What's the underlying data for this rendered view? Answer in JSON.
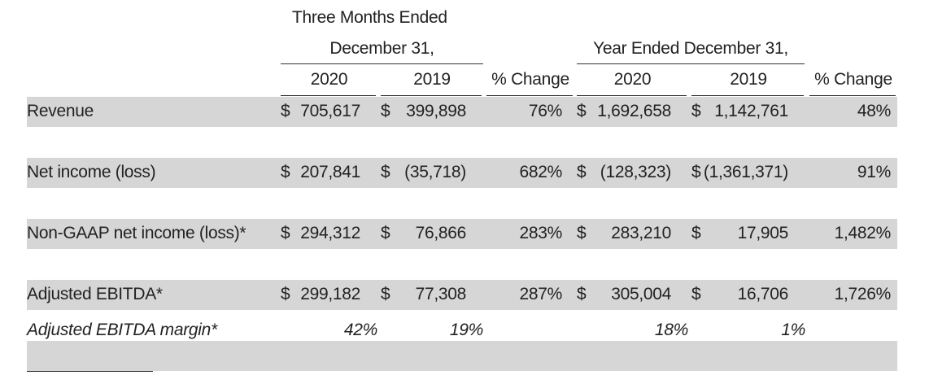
{
  "header": {
    "three_months_line1": "Three Months Ended",
    "three_months_line2": "December 31,",
    "year_ended": "Year Ended December 31,",
    "columns": [
      "2020",
      "2019",
      "% Change",
      "2020",
      "2019",
      "% Change"
    ]
  },
  "rows": [
    {
      "label": "Revenue",
      "cells": [
        {
          "currency": "$",
          "amount": "705,617"
        },
        {
          "currency": "$",
          "amount": "399,898"
        },
        "76%",
        {
          "currency": "$",
          "amount": "1,692,658"
        },
        {
          "currency": "$",
          "amount": "1,142,761"
        },
        "48%"
      ]
    },
    {
      "label": "Net income (loss)",
      "cells": [
        {
          "currency": "$",
          "amount": "207,841"
        },
        {
          "currency": "$",
          "amount": "(35,718)"
        },
        "682%",
        {
          "currency": "$",
          "amount": "(128,323)"
        },
        {
          "currency": "$",
          "amount": "(1,361,371)"
        },
        "91%"
      ]
    },
    {
      "label": "Non-GAAP net income (loss)*",
      "cells": [
        {
          "currency": "$",
          "amount": "294,312"
        },
        {
          "currency": "$",
          "amount": "76,866"
        },
        "283%",
        {
          "currency": "$",
          "amount": "283,210"
        },
        {
          "currency": "$",
          "amount": "17,905"
        },
        "1,482%"
      ]
    },
    {
      "label": "Adjusted EBITDA*",
      "cells": [
        {
          "currency": "$",
          "amount": "299,182"
        },
        {
          "currency": "$",
          "amount": "77,308"
        },
        "287%",
        {
          "currency": "$",
          "amount": "305,004"
        },
        {
          "currency": "$",
          "amount": "16,706"
        },
        "1,726%"
      ]
    },
    {
      "label": "Adjusted EBITDA margin*",
      "italic": true,
      "cells": [
        "42%",
        "19%",
        null,
        "18%",
        "1%",
        null
      ]
    }
  ]
}
